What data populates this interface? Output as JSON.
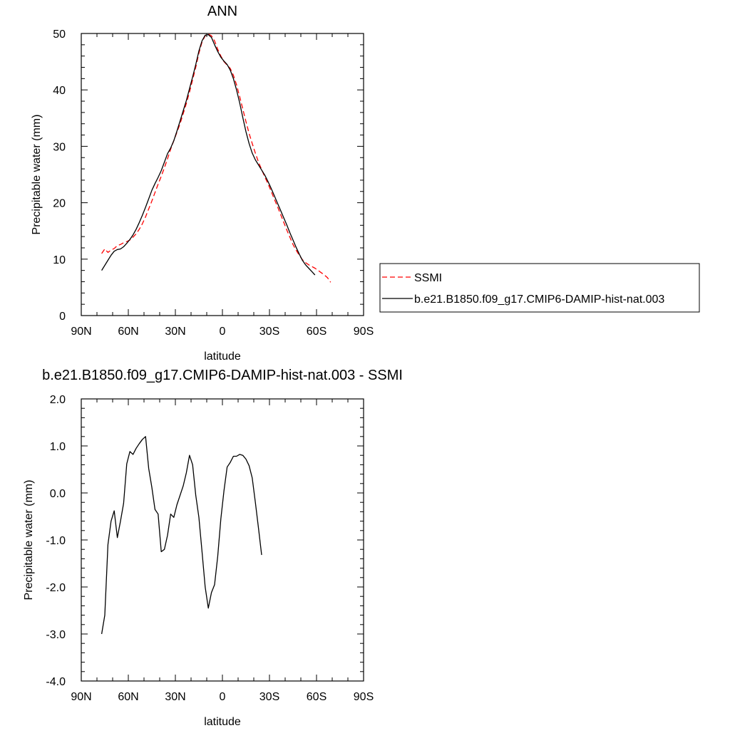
{
  "chart_data": [
    {
      "type": "line",
      "title": "ANN",
      "xlabel": "latitude",
      "ylabel": "Precipitable water (mm)",
      "xlim": [
        90,
        -90
      ],
      "ylim": [
        0,
        50
      ],
      "x_ticks": [
        90,
        60,
        30,
        0,
        -30,
        -60,
        -90
      ],
      "x_tick_labels": [
        "90N",
        "60N",
        "30N",
        "0",
        "30S",
        "60S",
        "90S"
      ],
      "y_ticks": [
        0,
        10,
        20,
        30,
        40,
        50
      ],
      "y_tick_labels": [
        "0",
        "10",
        "20",
        "30",
        "40",
        "50"
      ],
      "legend_position": "right",
      "series": [
        {
          "name": "SSMI",
          "style": "dashed",
          "color": "#ff0000",
          "points": [
            [
              77,
              11
            ],
            [
              75,
              11.8
            ],
            [
              73,
              11.2
            ],
            [
              71,
              11.6
            ],
            [
              69,
              11.9
            ],
            [
              67,
              12.4
            ],
            [
              65,
              12.6
            ],
            [
              63,
              12.9
            ],
            [
              61,
              13.1
            ],
            [
              59,
              13.4
            ],
            [
              57,
              13.9
            ],
            [
              55,
              14.5
            ],
            [
              53,
              15.3
            ],
            [
              51,
              16.3
            ],
            [
              49,
              17.5
            ],
            [
              47,
              18.9
            ],
            [
              45,
              20.3
            ],
            [
              43,
              21.8
            ],
            [
              41,
              23.3
            ],
            [
              39,
              24.7
            ],
            [
              37,
              26.2
            ],
            [
              35,
              27.8
            ],
            [
              33,
              29.5
            ],
            [
              31,
              31
            ],
            [
              29,
              32.5
            ],
            [
              27,
              34
            ],
            [
              25,
              35.8
            ],
            [
              23,
              37.6
            ],
            [
              21,
              39.6
            ],
            [
              19,
              41.8
            ],
            [
              17,
              44
            ],
            [
              15,
              46.5
            ],
            [
              13,
              48.5
            ],
            [
              11,
              49.6
            ],
            [
              9,
              49.9
            ],
            [
              7,
              49.6
            ],
            [
              5,
              48.7
            ],
            [
              3,
              47.2
            ],
            [
              1,
              46
            ],
            [
              -1,
              45
            ],
            [
              -3,
              44.4
            ],
            [
              -5,
              43.8
            ],
            [
              -7,
              42.6
            ],
            [
              -9,
              40.9
            ],
            [
              -11,
              38.8
            ],
            [
              -13,
              36.6
            ],
            [
              -15,
              34.4
            ],
            [
              -17,
              32.3
            ],
            [
              -19,
              30.5
            ],
            [
              -21,
              28.8
            ],
            [
              -23,
              27.2
            ],
            [
              -25,
              25.9
            ],
            [
              -27,
              24.6
            ],
            [
              -29,
              23.4
            ],
            [
              -31,
              22.1
            ],
            [
              -33,
              20.7
            ],
            [
              -35,
              19.4
            ],
            [
              -37,
              18
            ],
            [
              -39,
              16.6
            ],
            [
              -41,
              15.2
            ],
            [
              -43,
              13.9
            ],
            [
              -45,
              12.6
            ],
            [
              -47,
              11.6
            ],
            [
              -49,
              10.7
            ],
            [
              -51,
              9.9
            ],
            [
              -53,
              9.4
            ],
            [
              -55,
              9
            ],
            [
              -57,
              8.7
            ],
            [
              -59,
              8.4
            ],
            [
              -61,
              8
            ],
            [
              -63,
              7.6
            ],
            [
              -65,
              7.2
            ],
            [
              -67,
              6.7
            ],
            [
              -69,
              5.9
            ]
          ]
        },
        {
          "name": "b.e21.B1850.f09_g17.CMIP6-DAMIP-hist-nat.003",
          "style": "solid",
          "color": "#000000",
          "points": [
            [
              77,
              8
            ],
            [
              75,
              8.9
            ],
            [
              73,
              9.8
            ],
            [
              71,
              10.7
            ],
            [
              69,
              11.4
            ],
            [
              67,
              11.7
            ],
            [
              65,
              11.8
            ],
            [
              63,
              12.2
            ],
            [
              61,
              12.8
            ],
            [
              59,
              13.5
            ],
            [
              57,
              14.3
            ],
            [
              55,
              15.3
            ],
            [
              53,
              16.5
            ],
            [
              51,
              17.8
            ],
            [
              49,
              19.2
            ],
            [
              47,
              20.7
            ],
            [
              45,
              22.2
            ],
            [
              43,
              23.4
            ],
            [
              41,
              24.5
            ],
            [
              39,
              25.7
            ],
            [
              37,
              27.2
            ],
            [
              35,
              28.7
            ],
            [
              33,
              29.7
            ],
            [
              31,
              31
            ],
            [
              29,
              32.7
            ],
            [
              27,
              34.5
            ],
            [
              25,
              36.3
            ],
            [
              23,
              38.1
            ],
            [
              21,
              40.2
            ],
            [
              19,
              42.3
            ],
            [
              17,
              44.5
            ],
            [
              15,
              46.9
            ],
            [
              13,
              48.7
            ],
            [
              11,
              49.7
            ],
            [
              9,
              49.8
            ],
            [
              7,
              49.3
            ],
            [
              5,
              48
            ],
            [
              3,
              46.8
            ],
            [
              1,
              45.8
            ],
            [
              -1,
              45.1
            ],
            [
              -3,
              44.5
            ],
            [
              -5,
              43.5
            ],
            [
              -7,
              42
            ],
            [
              -9,
              40
            ],
            [
              -11,
              37.7
            ],
            [
              -13,
              35.1
            ],
            [
              -15,
              32.6
            ],
            [
              -17,
              30.5
            ],
            [
              -19,
              28.8
            ],
            [
              -21,
              27.6
            ],
            [
              -23,
              26.7
            ],
            [
              -25,
              25.8
            ],
            [
              -27,
              24.9
            ],
            [
              -29,
              23.8
            ],
            [
              -31,
              22.6
            ],
            [
              -33,
              21.3
            ],
            [
              -35,
              20
            ],
            [
              -37,
              18.7
            ],
            [
              -39,
              17.4
            ],
            [
              -41,
              16.1
            ],
            [
              -43,
              14.7
            ],
            [
              -45,
              13.4
            ],
            [
              -47,
              12.1
            ],
            [
              -49,
              10.9
            ],
            [
              -51,
              9.8
            ],
            [
              -53,
              9
            ],
            [
              -55,
              8.4
            ],
            [
              -57,
              7.8
            ],
            [
              -59,
              7.2
            ]
          ]
        }
      ]
    },
    {
      "type": "line",
      "title": "b.e21.B1850.f09_g17.CMIP6-DAMIP-hist-nat.003 - SSMI",
      "xlabel": "latitude",
      "ylabel": "Precipitable water (mm)",
      "xlim": [
        90,
        -90
      ],
      "ylim": [
        -4,
        2
      ],
      "x_ticks": [
        90,
        60,
        30,
        0,
        -30,
        -60,
        -90
      ],
      "x_tick_labels": [
        "90N",
        "60N",
        "30N",
        "0",
        "30S",
        "60S",
        "90S"
      ],
      "y_ticks": [
        -4,
        -3,
        -2,
        -1,
        0,
        1,
        2
      ],
      "y_tick_labels": [
        "-4.0",
        "-3.0",
        "-2.0",
        "-1.0",
        "0.0",
        "1.0",
        "2.0"
      ],
      "series": [
        {
          "style": "solid",
          "color": "#000000",
          "points": [
            [
              77,
              -3.0
            ],
            [
              75,
              -2.6
            ],
            [
              73,
              -1.1
            ],
            [
              71,
              -0.6
            ],
            [
              69,
              -0.38
            ],
            [
              67,
              -0.95
            ],
            [
              65,
              -0.6
            ],
            [
              63,
              -0.22
            ],
            [
              61,
              0.62
            ],
            [
              59,
              0.88
            ],
            [
              57,
              0.82
            ],
            [
              55,
              0.95
            ],
            [
              53,
              1.05
            ],
            [
              51,
              1.14
            ],
            [
              49,
              1.2
            ],
            [
              47,
              0.52
            ],
            [
              45,
              0.12
            ],
            [
              43,
              -0.35
            ],
            [
              41,
              -0.45
            ],
            [
              39,
              -1.25
            ],
            [
              37,
              -1.2
            ],
            [
              35,
              -0.9
            ],
            [
              33,
              -0.45
            ],
            [
              31,
              -0.52
            ],
            [
              29,
              -0.25
            ],
            [
              27,
              -0.05
            ],
            [
              25,
              0.15
            ],
            [
              23,
              0.43
            ],
            [
              21,
              0.8
            ],
            [
              19,
              0.6
            ],
            [
              17,
              -0.05
            ],
            [
              15,
              -0.52
            ],
            [
              13,
              -1.25
            ],
            [
              11,
              -2.0
            ],
            [
              9,
              -2.45
            ],
            [
              7,
              -2.12
            ],
            [
              5,
              -1.95
            ],
            [
              3,
              -1.35
            ],
            [
              1,
              -0.55
            ],
            [
              -1,
              0.05
            ],
            [
              -3,
              0.55
            ],
            [
              -5,
              0.65
            ],
            [
              -7,
              0.78
            ],
            [
              -9,
              0.78
            ],
            [
              -11,
              0.82
            ],
            [
              -13,
              0.8
            ],
            [
              -15,
              0.72
            ],
            [
              -17,
              0.58
            ],
            [
              -19,
              0.32
            ],
            [
              -21,
              -0.2
            ],
            [
              -23,
              -0.75
            ],
            [
              -25,
              -1.32
            ]
          ]
        }
      ]
    }
  ]
}
